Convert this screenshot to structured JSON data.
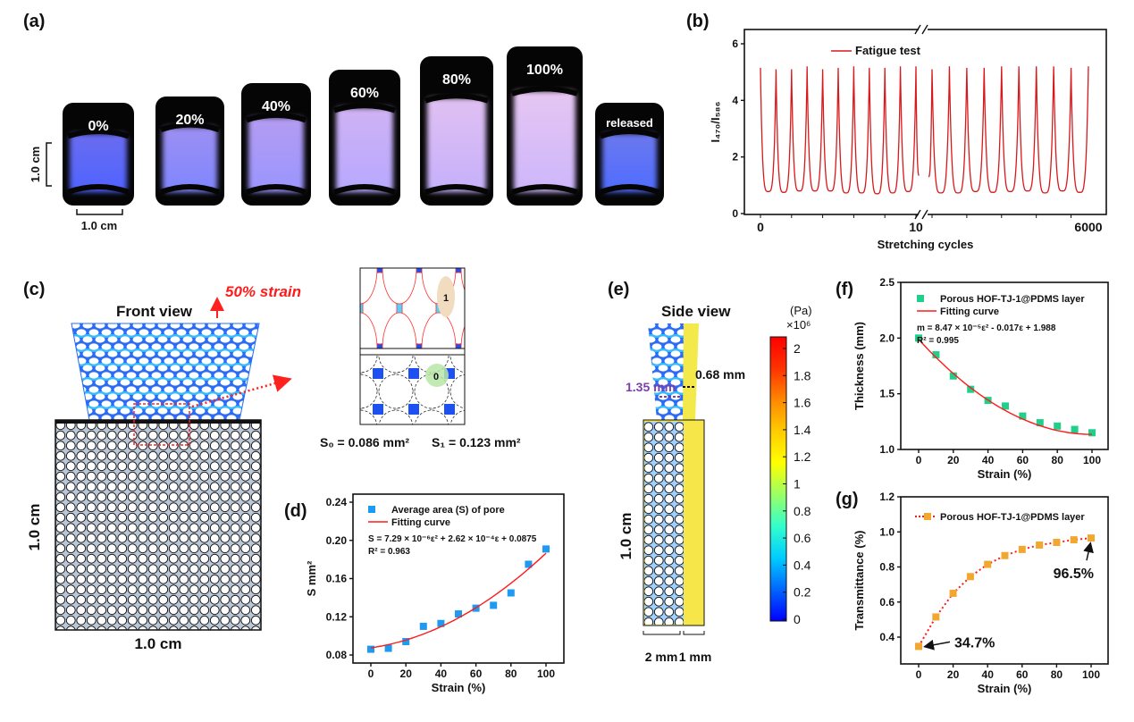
{
  "panel_labels": {
    "a": "(a)",
    "b": "(b)",
    "c": "(c)",
    "d": "(d)",
    "e": "(e)",
    "f": "(f)",
    "g": "(g)"
  },
  "panel_a": {
    "samples": [
      {
        "label": "0%",
        "glow": "#4f63ff",
        "glow2": "#6a6cf0"
      },
      {
        "label": "20%",
        "glow": "#7f86ff",
        "glow2": "#9c8ff2"
      },
      {
        "label": "40%",
        "glow": "#9a95ff",
        "glow2": "#b49cf2"
      },
      {
        "label": "60%",
        "glow": "#b7a8ff",
        "glow2": "#cfb2f4"
      },
      {
        "label": "80%",
        "glow": "#c6b0fb",
        "glow2": "#e0c0f2"
      },
      {
        "label": "100%",
        "glow": "#cdb6fb",
        "glow2": "#e6c6f2"
      },
      {
        "label": "released",
        "glow": "#4f6cff",
        "glow2": "#6b78ee"
      }
    ],
    "scale_vertical": "1.0 cm",
    "scale_horizontal": "1.0 cm"
  },
  "panel_c": {
    "front_view": "Front view",
    "strain_label": "50% strain",
    "inset_pore_1": "1",
    "inset_pore_0": "0",
    "s0": "S₀ = 0.086 mm²",
    "s1": "S₁ = 0.123 mm²",
    "height_label": "1.0 cm",
    "width_label": "1.0 cm"
  },
  "panel_e": {
    "side_view": "Side view",
    "dim_porous": "1.35 mm",
    "dim_solid": "0.68 mm",
    "height_label": "1.0 cm",
    "width_porous": "2 mm",
    "width_solid": "1 mm",
    "colorbar_unit": "(Pa)",
    "colorbar_multiplier": "×10⁶",
    "colorbar_ticks": [
      "0",
      "0.2",
      "0.4",
      "0.6",
      "0.8",
      "1",
      "1.2",
      "1.4",
      "1.6",
      "1.8",
      "2"
    ],
    "colormap": [
      "#0000ff",
      "#0066ff",
      "#00ccff",
      "#33ffcc",
      "#99ff66",
      "#ffff00",
      "#ffcc00",
      "#ff8800",
      "#ff3300",
      "#ff0000"
    ]
  },
  "chart_data": [
    {
      "id": "b",
      "type": "line",
      "xlabel": "Stretching cycles",
      "ylabel": "I₄₇₀/I₅₈₆",
      "ylim": [
        0,
        6.5
      ],
      "yticks": [
        "0",
        "2",
        "4",
        "6"
      ],
      "xticks": [
        "0",
        "10",
        "6000"
      ],
      "axis_break": true,
      "series": [
        {
          "name": "Fatigue test",
          "color": "#d7191c",
          "segments": [
            {
              "cycles": [
                0,
                10
              ],
              "peaks": [
                5.15,
                5.1,
                5.1,
                5.2,
                5.1,
                5.15,
                5.2,
                5.15,
                5.15,
                5.2,
                5.2
              ],
              "valleys": [
                0.78,
                0.75,
                0.8,
                0.8,
                0.8,
                0.73,
                0.73,
                0.7,
                0.73,
                0.78
              ],
              "end_value": 1.35
            },
            {
              "cycles": [
                5991,
                6000
              ],
              "start_value": 1.3,
              "peaks": [
                5.1,
                5.2,
                5.15,
                5.15,
                5.2,
                5.2,
                5.2,
                5.2,
                5.15,
                5.2
              ],
              "valleys": [
                0.73,
                0.73,
                0.78,
                0.75,
                0.78,
                0.8,
                0.73,
                0.8,
                0.75
              ]
            }
          ]
        }
      ]
    },
    {
      "id": "d",
      "type": "scatter",
      "xlabel": "Strain (%)",
      "ylabel": "S mm²",
      "xlim": [
        0,
        100
      ],
      "xticks": [
        0,
        20,
        40,
        60,
        80,
        100
      ],
      "ylim": [
        0.08,
        0.24
      ],
      "yticks": [
        "0.08",
        "0.12",
        "0.16",
        "0.20",
        "0.24"
      ],
      "x": [
        0,
        10,
        20,
        30,
        40,
        50,
        60,
        70,
        80,
        90,
        100
      ],
      "series": [
        {
          "name": "Average area (S) of pore",
          "color": "#1e9bf0",
          "values": [
            0.086,
            0.087,
            0.094,
            0.11,
            0.113,
            0.123,
            0.129,
            0.132,
            0.145,
            0.175,
            0.191
          ]
        },
        {
          "name": "Fitting curve",
          "color": "#ff1a1a",
          "fit": [
            7.29e-06,
            0.000262,
            0.0875
          ]
        }
      ],
      "equation": "S = 7.29 × 10⁻⁶ε² + 2.62 × 10⁻⁴ε + 0.0875",
      "r2": "R² = 0.963"
    },
    {
      "id": "f",
      "type": "scatter",
      "xlabel": "Strain (%)",
      "ylabel": "Thickness (mm)",
      "xlim": [
        0,
        100
      ],
      "xticks": [
        0,
        20,
        40,
        60,
        80,
        100
      ],
      "ylim": [
        1.0,
        2.5
      ],
      "yticks": [
        "1.0",
        "1.5",
        "2.0",
        "2.5"
      ],
      "x": [
        0,
        10,
        20,
        30,
        40,
        50,
        60,
        70,
        80,
        90,
        100
      ],
      "series": [
        {
          "name": "Porous HOF-TJ-1@PDMS layer",
          "color": "#1fcf8a",
          "values": [
            2.0,
            1.85,
            1.66,
            1.54,
            1.44,
            1.39,
            1.3,
            1.24,
            1.21,
            1.18,
            1.15
          ]
        },
        {
          "name": "Fitting curve",
          "color": "#ff1a1a",
          "fit": [
            8.47e-05,
            -0.017,
            1.988
          ]
        }
      ],
      "equation": "m = 8.47 × 10⁻⁵ε² - 0.017ε + 1.988",
      "r2": "R² = 0.995"
    },
    {
      "id": "g",
      "type": "line",
      "xlabel": "Strain (%)",
      "ylabel": "Transmittance (%)",
      "xlim": [
        0,
        100
      ],
      "xticks": [
        0,
        20,
        40,
        60,
        80,
        100
      ],
      "ylim": [
        0.4,
        1.2
      ],
      "yticks": [
        "0.4",
        "0.6",
        "0.8",
        "1.0",
        "1.2"
      ],
      "x": [
        0,
        10,
        20,
        30,
        40,
        50,
        60,
        70,
        80,
        90,
        100
      ],
      "series": [
        {
          "name": "Porous HOF-TJ-1@PDMS layer",
          "color": "#f0a830",
          "line_color": "#ff1a1a",
          "values": [
            0.347,
            0.515,
            0.65,
            0.745,
            0.815,
            0.865,
            0.9,
            0.925,
            0.94,
            0.955,
            0.965
          ]
        }
      ],
      "annotations": [
        "34.7%",
        "96.5%"
      ]
    }
  ]
}
